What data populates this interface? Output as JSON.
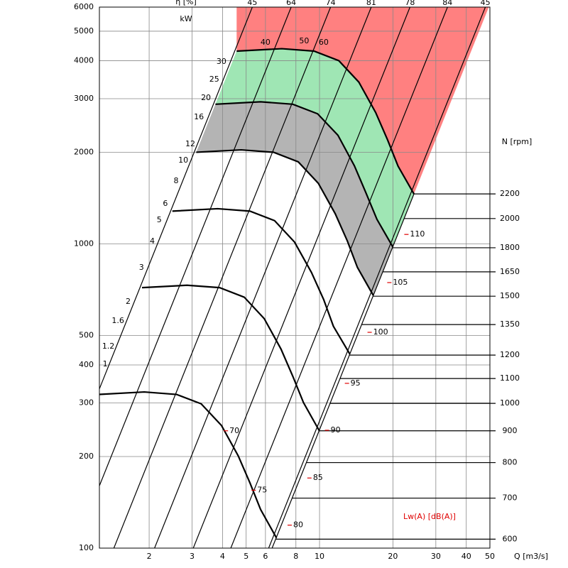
{
  "chart_data": {
    "type": "fan-chart",
    "efficiency_label": "η [%]",
    "power_unit": "kW",
    "x_label": "Q [m3/s]",
    "rpm_label": "N [rpm]",
    "noise_label": "Lw(A)  [dB(A)]",
    "xscale": "log",
    "yscale": "log",
    "xlim": [
      1.25,
      50
    ],
    "xticks": [
      2,
      3,
      4,
      5,
      6,
      8,
      10,
      20,
      30,
      40,
      50
    ],
    "ylim": [
      100,
      6000
    ],
    "yticks": [
      100,
      200,
      300,
      400,
      500,
      1000,
      2000,
      3000,
      4000,
      5000,
      6000
    ],
    "rpm_ticks": [
      {
        "value": 1459,
        "label": "2200"
      },
      {
        "value": 1211,
        "label": "2000"
      },
      {
        "value": 971,
        "label": "1800"
      },
      {
        "value": 809,
        "label": "1650"
      },
      {
        "value": 673,
        "label": "1500"
      },
      {
        "value": 543,
        "label": "1350"
      },
      {
        "value": 431,
        "label": "1200"
      },
      {
        "value": 361,
        "label": "1100"
      },
      {
        "value": 299,
        "label": "1000"
      },
      {
        "value": 243,
        "label": "900"
      },
      {
        "value": 191,
        "label": "800"
      },
      {
        "value": 146,
        "label": "700"
      },
      {
        "value": 107,
        "label": "600"
      }
    ],
    "efficiency_ticks": [
      {
        "value": 5.3,
        "label": "45"
      },
      {
        "value": 7.65,
        "label": "64"
      },
      {
        "value": 11.1,
        "label": "74"
      },
      {
        "value": 16.3,
        "label": "81"
      },
      {
        "value": 23.5,
        "label": "78"
      },
      {
        "value": 33.5,
        "label": "84"
      },
      {
        "value": 47.9,
        "label": "45"
      }
    ],
    "power_labels": [
      {
        "label": "40",
        "x": 6.0,
        "y": 4583
      },
      {
        "label": "50",
        "x": 8.65,
        "y": 4634
      },
      {
        "label": "60",
        "x": 10.4,
        "y": 4583
      },
      {
        "label": "30",
        "x": 3.96,
        "y": 3963
      },
      {
        "label": "25",
        "x": 3.7,
        "y": 3467
      },
      {
        "label": "20",
        "x": 3.42,
        "y": 3013
      },
      {
        "label": "16",
        "x": 3.2,
        "y": 2606
      },
      {
        "label": "12",
        "x": 2.95,
        "y": 2128
      },
      {
        "label": "10",
        "x": 2.76,
        "y": 1880
      },
      {
        "label": "8",
        "x": 2.58,
        "y": 1607
      },
      {
        "label": "6",
        "x": 2.33,
        "y": 1355
      },
      {
        "label": "5",
        "x": 2.2,
        "y": 1197
      },
      {
        "label": "4",
        "x": 2.06,
        "y": 1018
      },
      {
        "label": "3",
        "x": 1.86,
        "y": 835
      },
      {
        "label": "2",
        "x": 1.64,
        "y": 646
      },
      {
        "label": "1.6",
        "x": 1.49,
        "y": 558
      },
      {
        "label": "1.2",
        "x": 1.36,
        "y": 460
      },
      {
        "label": "1",
        "x": 1.32,
        "y": 402
      }
    ],
    "noise_labels": [
      {
        "label": "110",
        "x": 23.5,
        "y": 1074
      },
      {
        "label": "105",
        "x": 20.0,
        "y": 746
      },
      {
        "label": "100",
        "x": 16.6,
        "y": 512
      },
      {
        "label": "95",
        "x": 13.4,
        "y": 348
      },
      {
        "label": "90",
        "x": 11.1,
        "y": 244
      },
      {
        "label": "85",
        "x": 9.4,
        "y": 170
      },
      {
        "label": "80",
        "x": 7.8,
        "y": 119
      },
      {
        "label": "75",
        "x": 5.55,
        "y": 155
      },
      {
        "label": "70",
        "x": 4.27,
        "y": 243
      }
    ],
    "series": [
      {
        "name": "2200",
        "color": "#000000",
        "x": [
          4.57,
          7,
          9.5,
          12,
          14.5,
          17,
          19,
          21,
          24.4
        ],
        "values": [
          4300,
          4380,
          4300,
          4000,
          3400,
          2700,
          2200,
          1800,
          1459
        ]
      },
      {
        "name": "1800",
        "color": "#000000",
        "x": [
          3.74,
          5.73,
          7.77,
          9.82,
          11.9,
          13.9,
          15.5,
          17.2,
          20.0
        ],
        "values": [
          2877,
          2930,
          2877,
          2676,
          2275,
          1806,
          1472,
          1204,
          976
        ]
      },
      {
        "name": "1500",
        "color": "#000000",
        "x": [
          3.12,
          4.77,
          6.48,
          8.18,
          9.89,
          11.6,
          13.0,
          14.3,
          16.6
        ],
        "values": [
          2000,
          2037,
          2000,
          1860,
          1581,
          1256,
          1023,
          837,
          678
        ]
      },
      {
        "name": "1200",
        "color": "#000000",
        "x": [
          2.49,
          3.82,
          5.18,
          6.54,
          7.9,
          9.27,
          10.4,
          11.4,
          13.3
        ],
        "values": [
          1281,
          1305,
          1281,
          1192,
          1013,
          805,
          656,
          536,
          435
        ]
      },
      {
        "name": "900",
        "color": "#000000",
        "x": [
          1.87,
          2.86,
          3.89,
          4.91,
          5.93,
          6.95,
          7.77,
          8.59,
          9.98
        ],
        "values": [
          718,
          731,
          718,
          668,
          568,
          451,
          367,
          301,
          243
        ]
      },
      {
        "name": "600",
        "color": "#000000",
        "x": [
          1.25,
          1.91,
          2.59,
          3.27,
          3.96,
          4.64,
          5.18,
          5.73,
          6.66
        ],
        "values": [
          320,
          326,
          320,
          298,
          253,
          201,
          164,
          134,
          108
        ]
      }
    ],
    "zone_colors": [
      "#ff8080",
      "#9fe6b4",
      "#b4b4b4"
    ],
    "noise_color": "#e00000",
    "grid": true
  }
}
